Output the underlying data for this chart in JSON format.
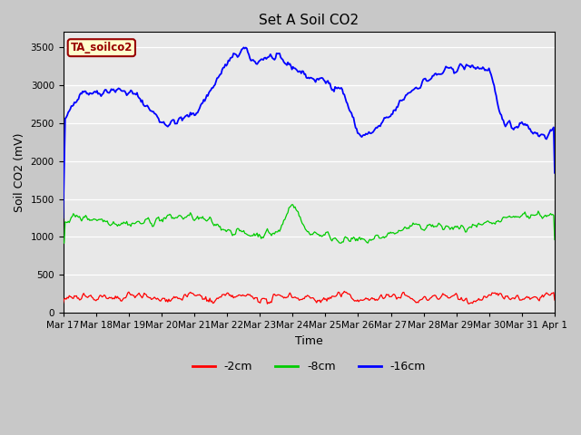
{
  "title": "Set A Soil CO2",
  "xlabel": "Time",
  "ylabel": "Soil CO2 (mV)",
  "ylim": [
    0,
    3700
  ],
  "yticks": [
    0,
    500,
    1000,
    1500,
    2000,
    2500,
    3000,
    3500
  ],
  "x_labels": [
    "Mar 17",
    "Mar 18",
    "Mar 19",
    "Mar 20",
    "Mar 21",
    "Mar 22",
    "Mar 23",
    "Mar 24",
    "Mar 25",
    "Mar 26",
    "Mar 27",
    "Mar 28",
    "Mar 29",
    "Mar 30",
    "Mar 31",
    "Apr 1"
  ],
  "legend_labels": [
    "-2cm",
    "-8cm",
    "-16cm"
  ],
  "legend_colors": [
    "#ff0000",
    "#00cc00",
    "#0000ff"
  ],
  "line_colors": [
    "#ff0000",
    "#00cc00",
    "#0000ff"
  ],
  "annotation_text": "TA_soilco2",
  "annotation_bg": "#ffffcc",
  "annotation_fg": "#990000",
  "fig_bg_color": "#c8c8c8",
  "plot_bg": "#e8e8e8",
  "title_fontsize": 11,
  "axis_label_fontsize": 9,
  "tick_fontsize": 7.5,
  "num_points": 480
}
